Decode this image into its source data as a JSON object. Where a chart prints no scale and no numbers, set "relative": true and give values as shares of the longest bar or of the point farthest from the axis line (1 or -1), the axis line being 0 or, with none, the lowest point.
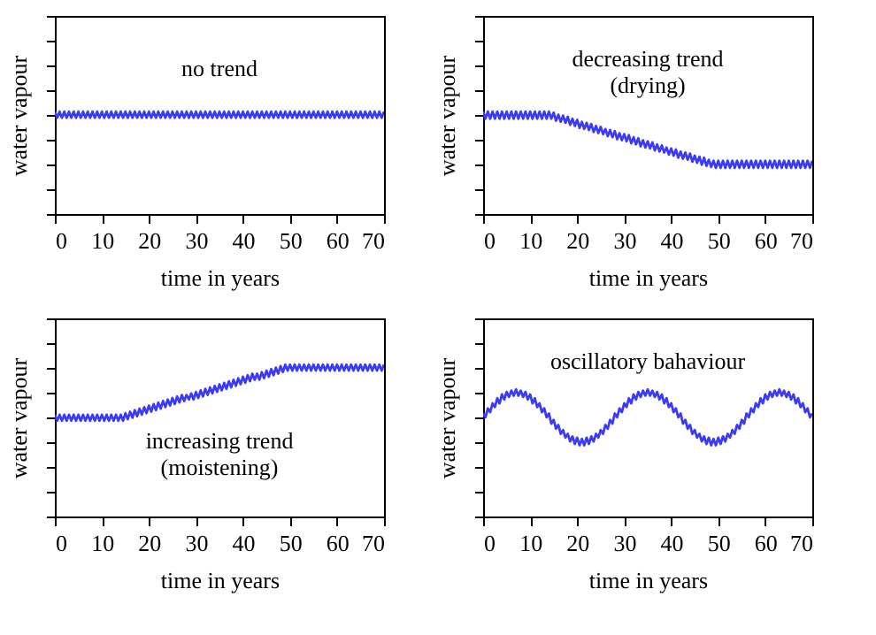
{
  "chart_data": [
    {
      "type": "line",
      "relative": true,
      "xlabel": "time in years",
      "ylabel": "water vapour",
      "xlim": [
        0,
        70
      ],
      "xticks": [
        0,
        10,
        20,
        30,
        40,
        50,
        60,
        70
      ],
      "tick_labels": "x",
      "annotations": [
        "no trend"
      ],
      "x": [
        0,
        0.5,
        1,
        1.5,
        2,
        2.5,
        3,
        3.5,
        4,
        4.5,
        5,
        5.5,
        6,
        6.5,
        7,
        7.5,
        8,
        8.5,
        9,
        9.5,
        10,
        10.5,
        11,
        11.5,
        12,
        12.5,
        13,
        13.5,
        14,
        14.5,
        15,
        15.5,
        16,
        16.5,
        17,
        17.5,
        18,
        18.5,
        19,
        19.5,
        20,
        20.5,
        21,
        21.5,
        22,
        22.5,
        23,
        23.5,
        24,
        24.5,
        25,
        25.5,
        26,
        26.5,
        27,
        27.5,
        28,
        28.5,
        29,
        29.5,
        30,
        30.5,
        31,
        31.5,
        32,
        32.5,
        33,
        33.5,
        34,
        34.5,
        35,
        35.5,
        36,
        36.5,
        37,
        37.5,
        38,
        38.5,
        39,
        39.5,
        40,
        40.5,
        41,
        41.5,
        42,
        42.5,
        43,
        43.5,
        44,
        44.5,
        45,
        45.5,
        46,
        46.5,
        47,
        47.5,
        48,
        48.5,
        49,
        49.5,
        50,
        50.5,
        51,
        51.5,
        52,
        52.5,
        53,
        53.5,
        54,
        54.5,
        55,
        55.5,
        56,
        56.5,
        57,
        57.5,
        58,
        58.5,
        59,
        59.5,
        60,
        60.5,
        61,
        61.5,
        62,
        62.5,
        63,
        63.5,
        64,
        64.5,
        65,
        65.5,
        66,
        66.5,
        67,
        67.5,
        68,
        68.5,
        69,
        69.5,
        70
      ],
      "series": [
        {
          "color": "#3b3bf5",
          "values": [
            1,
            0.94,
            1,
            0.94,
            1,
            0.94,
            1,
            0.94,
            1,
            0.94,
            1,
            0.94,
            1,
            0.94,
            1,
            0.94,
            1,
            0.94,
            1,
            0.94,
            1,
            0.94,
            1,
            0.94,
            1,
            0.94,
            1,
            0.94,
            1,
            0.94,
            1,
            0.94,
            1,
            0.94,
            1,
            0.94,
            1,
            0.94,
            1,
            0.94,
            1,
            0.94,
            1,
            0.94,
            1,
            0.94,
            1,
            0.94,
            1,
            0.94,
            1,
            0.94,
            1,
            0.94,
            1,
            0.94,
            1,
            0.94,
            1,
            0.94,
            1,
            0.94,
            1,
            0.94,
            1,
            0.94,
            1,
            0.94,
            1,
            0.94,
            1,
            0.94,
            1,
            0.94,
            1,
            0.94,
            1,
            0.94,
            1,
            0.94,
            1,
            0.94,
            1,
            0.94,
            1,
            0.94,
            1,
            0.94,
            1,
            0.94,
            1,
            0.94,
            1,
            0.94,
            1,
            0.94,
            1,
            0.94,
            1,
            0.94,
            1,
            0.94,
            1,
            0.94,
            1,
            0.94,
            1,
            0.94,
            1,
            0.94,
            1,
            0.94,
            1,
            0.94,
            1,
            0.94,
            1,
            0.94,
            1,
            0.94,
            1,
            0.94,
            1,
            0.94,
            1,
            0.94,
            1,
            0.94,
            1,
            0.94,
            1,
            0.94,
            1,
            0.94,
            1,
            0.94,
            1,
            0.94,
            1,
            0.94,
            1
          ]
        }
      ]
    },
    {
      "type": "line",
      "relative": true,
      "xlabel": "time in years",
      "ylabel": "water vapour",
      "xlim": [
        0,
        70
      ],
      "xticks": [
        0,
        10,
        20,
        30,
        40,
        50,
        60,
        70
      ],
      "tick_labels": "x",
      "annotations": [
        "decreasing trend\n(drying)"
      ],
      "x": [
        0,
        0.5,
        1,
        1.5,
        2,
        2.5,
        3,
        3.5,
        4,
        4.5,
        5,
        5.5,
        6,
        6.5,
        7,
        7.5,
        8,
        8.5,
        9,
        9.5,
        10,
        10.5,
        11,
        11.5,
        12,
        12.5,
        13,
        13.5,
        14,
        14.5,
        15,
        15.5,
        16,
        16.5,
        17,
        17.5,
        18,
        18.5,
        19,
        19.5,
        20,
        20.5,
        21,
        21.5,
        22,
        22.5,
        23,
        23.5,
        24,
        24.5,
        25,
        25.5,
        26,
        26.5,
        27,
        27.5,
        28,
        28.5,
        29,
        29.5,
        30,
        30.5,
        31,
        31.5,
        32,
        32.5,
        33,
        33.5,
        34,
        34.5,
        35,
        35.5,
        36,
        36.5,
        37,
        37.5,
        38,
        38.5,
        39,
        39.5,
        40,
        40.5,
        41,
        41.5,
        42,
        42.5,
        43,
        43.5,
        44,
        44.5,
        45,
        45.5,
        46,
        46.5,
        47,
        47.5,
        48,
        48.5,
        49,
        49.5,
        50,
        50.5,
        51,
        51.5,
        52,
        52.5,
        53,
        53.5,
        54,
        54.5,
        55,
        55.5,
        56,
        56.5,
        57,
        57.5,
        58,
        58.5,
        59,
        59.5,
        60,
        60.5,
        61,
        61.5,
        62,
        62.5,
        63,
        63.5,
        64,
        64.5,
        65,
        65.5,
        66,
        66.5,
        67,
        67.5,
        68,
        68.5,
        69,
        69.5,
        70
      ],
      "series": [
        {
          "color": "#3b3bf5",
          "values": [
            1,
            0.93,
            1,
            0.93,
            1,
            0.93,
            1,
            0.93,
            1,
            0.93,
            1,
            0.93,
            1,
            0.93,
            1,
            0.93,
            1,
            0.93,
            1,
            0.93,
            1,
            0.93,
            1,
            0.93,
            1,
            0.93,
            1,
            0.93,
            1,
            0.93,
            0.99,
            0.91,
            0.97,
            0.9,
            0.96,
            0.89,
            0.95,
            0.87,
            0.93,
            0.86,
            0.92,
            0.84,
            0.9,
            0.83,
            0.89,
            0.82,
            0.88,
            0.8,
            0.86,
            0.79,
            0.85,
            0.78,
            0.83,
            0.76,
            0.82,
            0.75,
            0.81,
            0.73,
            0.79,
            0.72,
            0.78,
            0.71,
            0.77,
            0.69,
            0.75,
            0.68,
            0.74,
            0.66,
            0.72,
            0.65,
            0.71,
            0.64,
            0.7,
            0.62,
            0.68,
            0.61,
            0.67,
            0.6,
            0.65,
            0.58,
            0.64,
            0.57,
            0.63,
            0.55,
            0.61,
            0.54,
            0.6,
            0.53,
            0.59,
            0.51,
            0.57,
            0.5,
            0.56,
            0.48,
            0.55,
            0.47,
            0.53,
            0.46,
            0.52,
            0.45,
            0.52,
            0.45,
            0.52,
            0.45,
            0.52,
            0.45,
            0.52,
            0.45,
            0.52,
            0.45,
            0.52,
            0.45,
            0.52,
            0.45,
            0.52,
            0.45,
            0.52,
            0.45,
            0.52,
            0.45,
            0.52,
            0.45,
            0.52,
            0.45,
            0.52,
            0.45,
            0.52,
            0.45,
            0.52,
            0.45,
            0.52,
            0.45,
            0.52,
            0.45,
            0.52,
            0.45,
            0.52,
            0.45,
            0.52,
            0.45,
            0.52
          ]
        }
      ]
    },
    {
      "type": "line",
      "relative": true,
      "xlabel": "time in years",
      "ylabel": "water vapour",
      "xlim": [
        0,
        70
      ],
      "xticks": [
        0,
        10,
        20,
        30,
        40,
        50,
        60,
        70
      ],
      "tick_labels": "x",
      "annotations": [
        "increasing trend\n(moistening)"
      ],
      "x": [
        0,
        0.5,
        1,
        1.5,
        2,
        2.5,
        3,
        3.5,
        4,
        4.5,
        5,
        5.5,
        6,
        6.5,
        7,
        7.5,
        8,
        8.5,
        9,
        9.5,
        10,
        10.5,
        11,
        11.5,
        12,
        12.5,
        13,
        13.5,
        14,
        14.5,
        15,
        15.5,
        16,
        16.5,
        17,
        17.5,
        18,
        18.5,
        19,
        19.5,
        20,
        20.5,
        21,
        21.5,
        22,
        22.5,
        23,
        23.5,
        24,
        24.5,
        25,
        25.5,
        26,
        26.5,
        27,
        27.5,
        28,
        28.5,
        29,
        29.5,
        30,
        30.5,
        31,
        31.5,
        32,
        32.5,
        33,
        33.5,
        34,
        34.5,
        35,
        35.5,
        36,
        36.5,
        37,
        37.5,
        38,
        38.5,
        39,
        39.5,
        40,
        40.5,
        41,
        41.5,
        42,
        42.5,
        43,
        43.5,
        44,
        44.5,
        45,
        45.5,
        46,
        46.5,
        47,
        47.5,
        48,
        48.5,
        49,
        49.5,
        50,
        50.5,
        51,
        51.5,
        52,
        52.5,
        53,
        53.5,
        54,
        54.5,
        55,
        55.5,
        56,
        56.5,
        57,
        57.5,
        58,
        58.5,
        59,
        59.5,
        60,
        60.5,
        61,
        61.5,
        62,
        62.5,
        63,
        63.5,
        64,
        64.5,
        65,
        65.5,
        66,
        66.5,
        67,
        67.5,
        68,
        68.5,
        69,
        69.5,
        70
      ],
      "series": [
        {
          "color": "#3b3bf5",
          "values": [
            0.67,
            0.63,
            0.67,
            0.63,
            0.67,
            0.63,
            0.67,
            0.63,
            0.67,
            0.63,
            0.67,
            0.63,
            0.67,
            0.63,
            0.67,
            0.63,
            0.67,
            0.63,
            0.67,
            0.63,
            0.67,
            0.63,
            0.67,
            0.63,
            0.67,
            0.63,
            0.67,
            0.63,
            0.67,
            0.63,
            0.68,
            0.64,
            0.69,
            0.65,
            0.7,
            0.66,
            0.71,
            0.67,
            0.72,
            0.68,
            0.73,
            0.69,
            0.74,
            0.7,
            0.75,
            0.71,
            0.76,
            0.72,
            0.77,
            0.73,
            0.78,
            0.74,
            0.79,
            0.75,
            0.8,
            0.76,
            0.8,
            0.77,
            0.81,
            0.77,
            0.82,
            0.78,
            0.83,
            0.79,
            0.84,
            0.8,
            0.85,
            0.81,
            0.86,
            0.82,
            0.87,
            0.83,
            0.88,
            0.84,
            0.89,
            0.85,
            0.9,
            0.86,
            0.91,
            0.87,
            0.92,
            0.88,
            0.93,
            0.89,
            0.94,
            0.9,
            0.94,
            0.9,
            0.95,
            0.91,
            0.96,
            0.92,
            0.97,
            0.93,
            0.98,
            0.94,
            0.99,
            0.95,
            1,
            0.96,
            1,
            0.96,
            1,
            0.96,
            1,
            0.96,
            1,
            0.96,
            1,
            0.96,
            1,
            0.96,
            1,
            0.96,
            1,
            0.96,
            1,
            0.96,
            1,
            0.96,
            1,
            0.96,
            1,
            0.96,
            1,
            0.96,
            1,
            0.96,
            1,
            0.96,
            1,
            0.96,
            1,
            0.96,
            1,
            0.96,
            1,
            0.96,
            1,
            0.96,
            1
          ]
        }
      ]
    },
    {
      "type": "line",
      "relative": true,
      "xlabel": "time in years",
      "ylabel": "water vapour",
      "xlim": [
        0,
        70
      ],
      "xticks": [
        0,
        10,
        20,
        30,
        40,
        50,
        60,
        70
      ],
      "tick_labels": "x",
      "annotations": [
        "oscillatory bahaviour"
      ],
      "x": [
        0,
        0.5,
        1,
        1.5,
        2,
        2.5,
        3,
        3.5,
        4,
        4.5,
        5,
        5.5,
        6,
        6.5,
        7,
        7.5,
        8,
        8.5,
        9,
        9.5,
        10,
        10.5,
        11,
        11.5,
        12,
        12.5,
        13,
        13.5,
        14,
        14.5,
        15,
        15.5,
        16,
        16.5,
        17,
        17.5,
        18,
        18.5,
        19,
        19.5,
        20,
        20.5,
        21,
        21.5,
        22,
        22.5,
        23,
        23.5,
        24,
        24.5,
        25,
        25.5,
        26,
        26.5,
        27,
        27.5,
        28,
        28.5,
        29,
        29.5,
        30,
        30.5,
        31,
        31.5,
        32,
        32.5,
        33,
        33.5,
        34,
        34.5,
        35,
        35.5,
        36,
        36.5,
        37,
        37.5,
        38,
        38.5,
        39,
        39.5,
        40,
        40.5,
        41,
        41.5,
        42,
        42.5,
        43,
        43.5,
        44,
        44.5,
        45,
        45.5,
        46,
        46.5,
        47,
        47.5,
        48,
        48.5,
        49,
        49.5,
        50,
        50.5,
        51,
        51.5,
        52,
        52.5,
        53,
        53.5,
        54,
        54.5,
        55,
        55.5,
        56,
        56.5,
        57,
        57.5,
        58,
        58.5,
        59,
        59.5,
        60,
        60.5,
        61,
        61.5,
        62,
        62.5,
        63,
        63.5,
        64,
        64.5,
        65,
        65.5,
        66,
        66.5,
        67,
        67.5,
        68,
        68.5,
        69,
        69.5,
        70
      ],
      "series": [
        {
          "color": "#3b3bf5",
          "values": [
            0.81,
            0.78,
            0.85,
            0.82,
            0.89,
            0.86,
            0.93,
            0.89,
            0.96,
            0.92,
            0.98,
            0.94,
            0.99,
            0.95,
            1,
            0.95,
            0.99,
            0.94,
            0.98,
            0.92,
            0.96,
            0.89,
            0.93,
            0.86,
            0.89,
            0.82,
            0.85,
            0.78,
            0.81,
            0.73,
            0.76,
            0.69,
            0.72,
            0.65,
            0.68,
            0.62,
            0.65,
            0.59,
            0.63,
            0.57,
            0.62,
            0.56,
            0.61,
            0.56,
            0.62,
            0.57,
            0.63,
            0.59,
            0.65,
            0.62,
            0.68,
            0.65,
            0.72,
            0.69,
            0.76,
            0.73,
            0.81,
            0.78,
            0.85,
            0.82,
            0.89,
            0.86,
            0.93,
            0.89,
            0.96,
            0.92,
            0.98,
            0.94,
            0.99,
            0.95,
            1,
            0.95,
            0.99,
            0.94,
            0.98,
            0.92,
            0.96,
            0.89,
            0.93,
            0.86,
            0.89,
            0.82,
            0.85,
            0.78,
            0.81,
            0.73,
            0.76,
            0.69,
            0.72,
            0.65,
            0.68,
            0.62,
            0.65,
            0.59,
            0.63,
            0.57,
            0.62,
            0.56,
            0.61,
            0.56,
            0.62,
            0.57,
            0.63,
            0.59,
            0.65,
            0.62,
            0.68,
            0.65,
            0.72,
            0.69,
            0.76,
            0.73,
            0.81,
            0.78,
            0.85,
            0.82,
            0.89,
            0.86,
            0.93,
            0.89,
            0.96,
            0.92,
            0.98,
            0.94,
            0.99,
            0.95,
            1,
            0.95,
            0.99,
            0.94,
            0.98,
            0.92,
            0.96,
            0.89,
            0.93,
            0.86,
            0.89,
            0.82,
            0.85,
            0.78,
            0.81
          ]
        }
      ]
    }
  ]
}
